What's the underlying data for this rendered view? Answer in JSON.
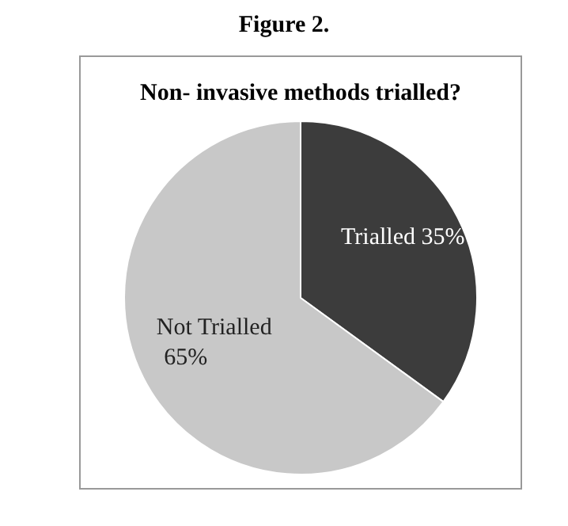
{
  "chart_data": {
    "type": "pie",
    "title": "Non- invasive methods trialled?",
    "annotations": [
      "Figure 2."
    ],
    "categories": [
      "Trialled",
      "Not Trialled"
    ],
    "values": [
      35,
      65
    ],
    "value_labels": [
      "35%",
      "65%"
    ],
    "colors": [
      "#3c3c3c",
      "#c8c8c8"
    ],
    "legend": false
  }
}
